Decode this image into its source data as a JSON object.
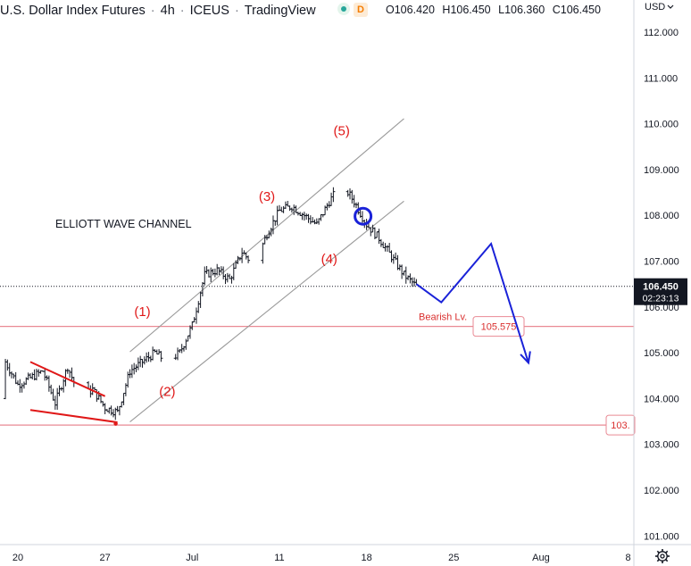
{
  "header": {
    "symbol_name": "U.S. Dollar Index Futures",
    "interval": "4h",
    "exchange": "ICEUS",
    "source": "TradingView",
    "badge_letter": "D",
    "ohlc": [
      {
        "key": "O",
        "value": "106.420"
      },
      {
        "key": "H",
        "value": "106.450"
      },
      {
        "key": "L",
        "value": "106.360"
      },
      {
        "key": "C",
        "value": "106.450"
      }
    ],
    "currency": "USD"
  },
  "colors": {
    "background": "#ffffff",
    "bars": "#131722",
    "channel": "#9a9a9a",
    "wave_labels": "#e01818",
    "projection": "#1a22d8",
    "levels": "#e98a94",
    "level_tag_text": "#d9302f",
    "price_tag_bg": "#131722",
    "grid_text": "#131722"
  },
  "chart_data": {
    "type": "ohlc-bars",
    "instrument": "U.S. Dollar Index Futures",
    "timeframe": "4h",
    "y_axis": {
      "ticks": [
        "112.000",
        "111.000",
        "110.000",
        "109.000",
        "108.000",
        "107.000",
        "106.000",
        "105.000",
        "104.000",
        "103.000",
        "102.000",
        "101.000"
      ],
      "tick_values": [
        112,
        111,
        110,
        109,
        108,
        107,
        106,
        105,
        104,
        103,
        102,
        101
      ],
      "ylim": [
        100.7,
        112.4
      ]
    },
    "x_axis": {
      "ticks": [
        "20",
        "27",
        "Jul",
        "11",
        "18",
        "25",
        "Aug",
        "8"
      ],
      "tick_dates": [
        "2022-06-20",
        "2022-06-27",
        "2022-07-04",
        "2022-07-11",
        "2022-07-18",
        "2022-07-25",
        "2022-08-01",
        "2022-08-08"
      ],
      "xlim": [
        "2022-06-18",
        "2022-08-08"
      ]
    },
    "price_line": {
      "value": 106.45,
      "label": "106.450",
      "countdown": "02:23:13"
    },
    "close_path": [
      {
        "date": "2022-06-18",
        "price": 104.0
      },
      {
        "date": "2022-06-19",
        "price": 104.8
      },
      {
        "date": "2022-06-20",
        "price": 104.3
      },
      {
        "date": "2022-06-22",
        "price": 104.6
      },
      {
        "date": "2022-06-23",
        "price": 103.9
      },
      {
        "date": "2022-06-24",
        "price": 104.7
      },
      {
        "date": "2022-06-25",
        "price": 104.0
      },
      {
        "date": "2022-06-26",
        "price": 104.2
      },
      {
        "date": "2022-06-27",
        "price": 103.8
      },
      {
        "date": "2022-06-28",
        "price": 103.7
      },
      {
        "date": "2022-06-29",
        "price": 104.6
      },
      {
        "date": "2022-06-30",
        "price": 104.8
      },
      {
        "date": "2022-07-01",
        "price": 105.0
      },
      {
        "date": "2022-07-02",
        "price": 104.8
      },
      {
        "date": "2022-07-03",
        "price": 105.0
      },
      {
        "date": "2022-07-04",
        "price": 105.6
      },
      {
        "date": "2022-07-05",
        "price": 106.7
      },
      {
        "date": "2022-07-06",
        "price": 106.8
      },
      {
        "date": "2022-07-07",
        "price": 106.6
      },
      {
        "date": "2022-07-08",
        "price": 107.2
      },
      {
        "date": "2022-07-09",
        "price": 106.9
      },
      {
        "date": "2022-07-10",
        "price": 107.6
      },
      {
        "date": "2022-07-11",
        "price": 108.1
      },
      {
        "date": "2022-07-12",
        "price": 108.2
      },
      {
        "date": "2022-07-13",
        "price": 108.0
      },
      {
        "date": "2022-07-14",
        "price": 107.8
      },
      {
        "date": "2022-07-15",
        "price": 108.3
      },
      {
        "date": "2022-07-16",
        "price": 108.7
      },
      {
        "date": "2022-07-17",
        "price": 108.3
      },
      {
        "date": "2022-07-18",
        "price": 107.8
      },
      {
        "date": "2022-07-19",
        "price": 107.5
      },
      {
        "date": "2022-07-20",
        "price": 107.1
      },
      {
        "date": "2022-07-21",
        "price": 106.7
      },
      {
        "date": "2022-07-22",
        "price": 106.45
      }
    ],
    "annotations": {
      "title": "ELLIOTT WAVE CHANNEL",
      "wave_labels": [
        {
          "text": "(1)",
          "date": "2022-06-30",
          "price": 105.8
        },
        {
          "text": "(2)",
          "date": "2022-07-02",
          "price": 104.06
        },
        {
          "text": "(3)",
          "date": "2022-07-10",
          "price": 108.32
        },
        {
          "text": "(4)",
          "date": "2022-07-15",
          "price": 106.95
        },
        {
          "text": "(5)",
          "date": "2022-07-16",
          "price": 109.75
        }
      ],
      "channel_lines": [
        {
          "from": {
            "date": "2022-06-29",
            "price": 105.02
          },
          "to": {
            "date": "2022-07-21",
            "price": 110.11
          }
        },
        {
          "from": {
            "date": "2022-06-29",
            "price": 103.49
          },
          "to": {
            "date": "2022-07-21",
            "price": 108.31
          }
        }
      ],
      "wedge_lines": [
        {
          "from": {
            "date": "2022-06-21",
            "price": 104.8
          },
          "to": {
            "date": "2022-06-27",
            "price": 104.05
          }
        },
        {
          "from": {
            "date": "2022-06-21",
            "price": 103.75
          },
          "to": {
            "date": "2022-06-28",
            "price": 103.48
          }
        }
      ],
      "breakout_circle": {
        "date": "2022-07-18",
        "price": 107.98
      },
      "projection_path": [
        {
          "date": "2022-07-22",
          "price": 106.5
        },
        {
          "date": "2022-07-24",
          "price": 106.1
        },
        {
          "date": "2022-07-28",
          "price": 107.38
        },
        {
          "date": "2022-07-31",
          "price": 104.78
        }
      ],
      "levels": [
        {
          "label": "Bearish Lv.",
          "value": 105.575,
          "tag": "105.575"
        },
        {
          "label": "",
          "value": 103.42,
          "tag": "103."
        }
      ]
    }
  }
}
